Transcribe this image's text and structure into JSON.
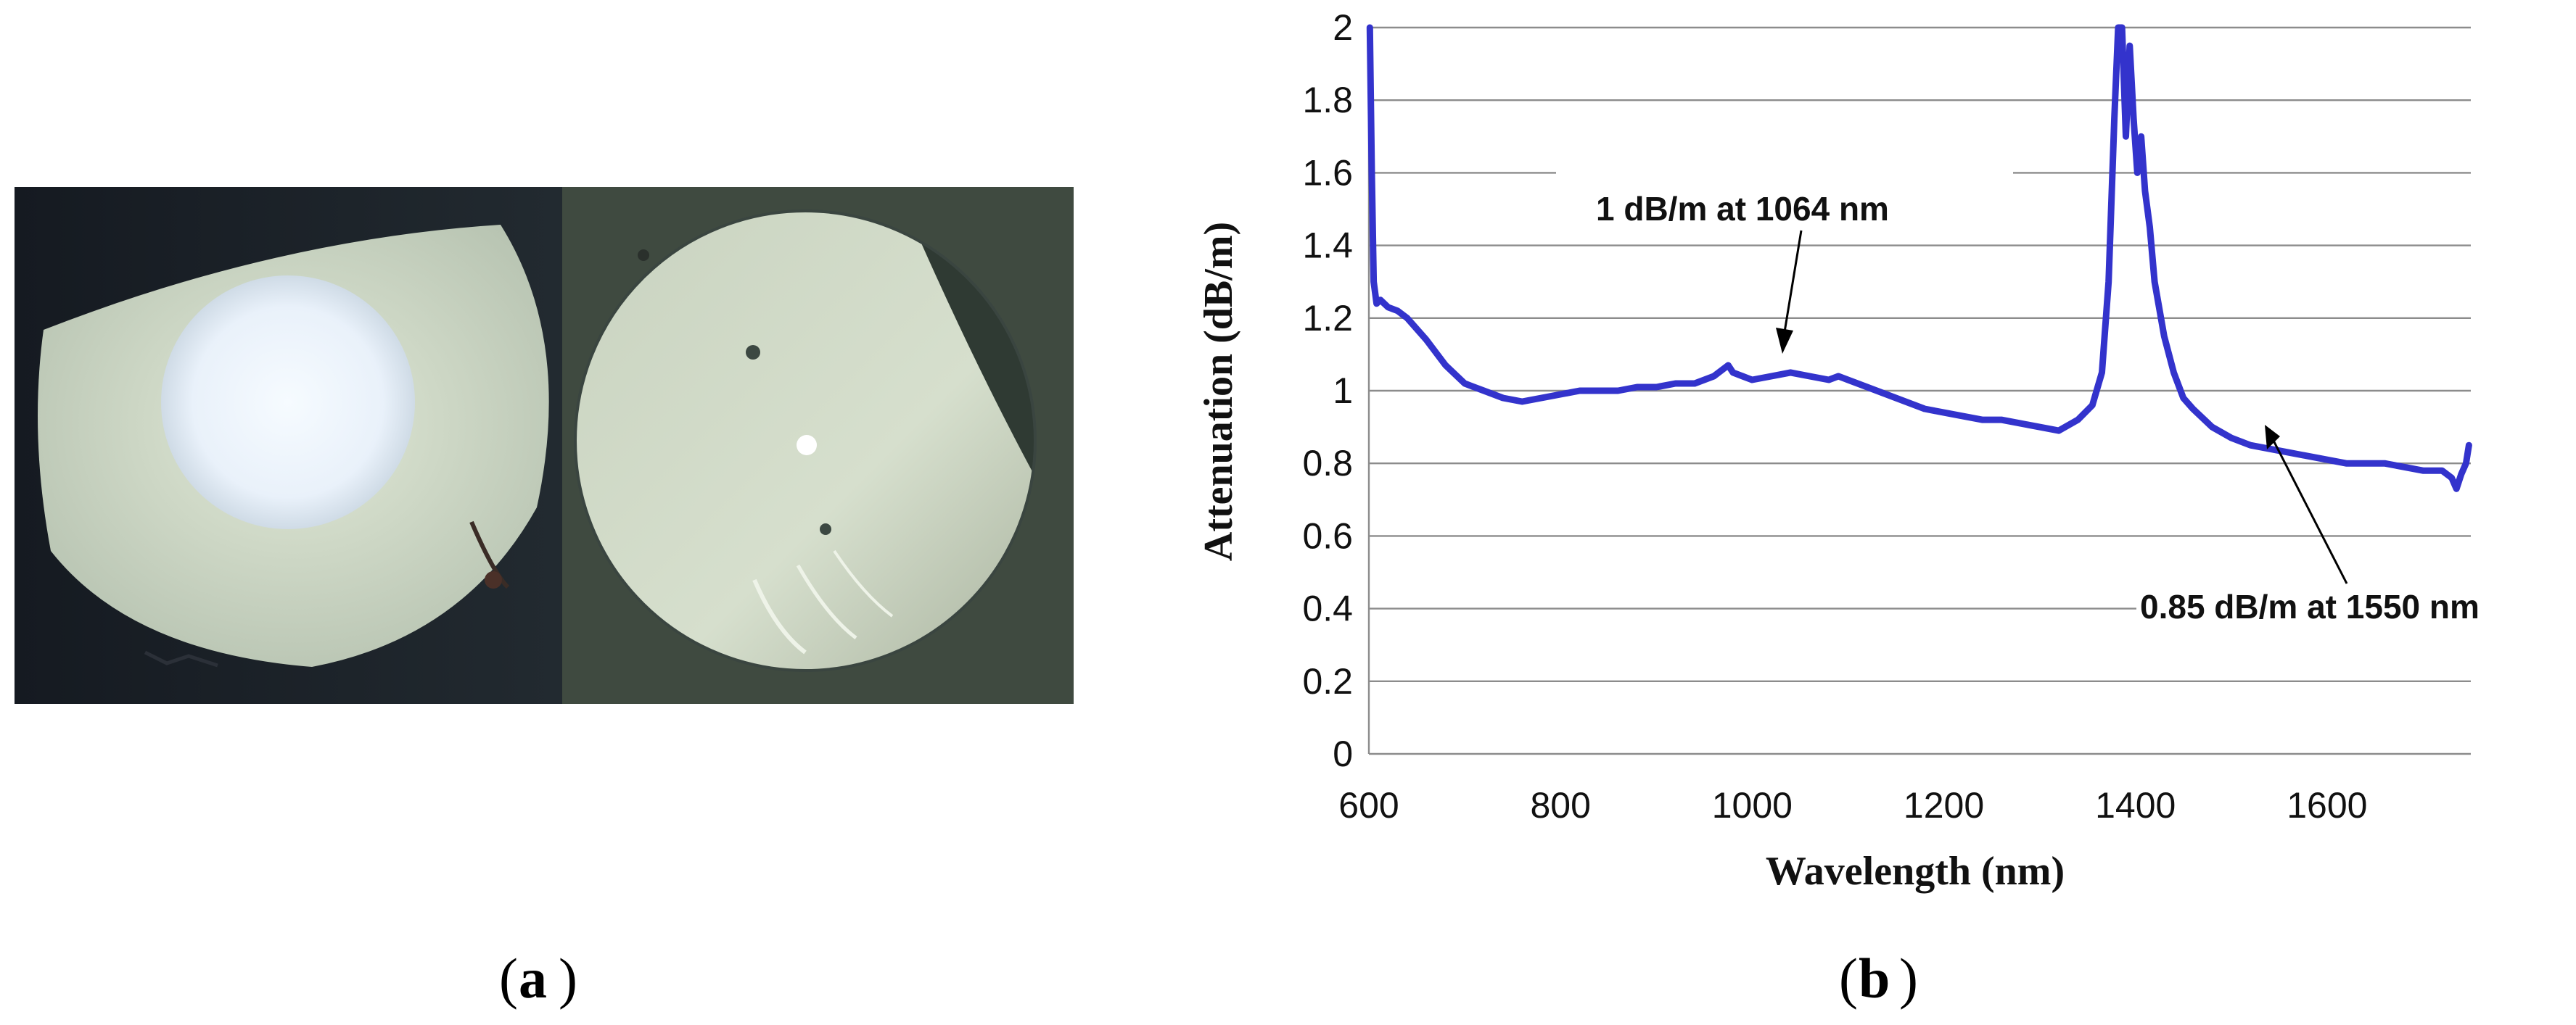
{
  "panel_labels": {
    "a": "a",
    "b": "b"
  },
  "colors": {
    "series": "#3333cc",
    "grid": "#8c8c8c",
    "photo_bg": "#1b2129"
  },
  "photo": {
    "left_image": "fiber-end-face-large-core",
    "right_image": "fiber-end-face-cleaved-small-core"
  },
  "chart_data": {
    "type": "line",
    "title": "",
    "xlabel": "Wavelength (nm)",
    "ylabel": "Attenuation (dB/m)",
    "xlim": [
      600,
      1750
    ],
    "ylim": [
      0,
      2
    ],
    "xticks": [
      600,
      800,
      1000,
      1200,
      1400,
      1600
    ],
    "xtick_labels": [
      "600",
      "800",
      "1000",
      "1200",
      "1400",
      "1600"
    ],
    "yticks": [
      0,
      0.2,
      0.4,
      0.6,
      0.8,
      1,
      1.2,
      1.4,
      1.6,
      1.8,
      2
    ],
    "ytick_labels": [
      "0",
      "0.2",
      "0.4",
      "0.6",
      "0.8",
      "1",
      "1.2",
      "1.4",
      "1.6",
      "1.8",
      "2"
    ],
    "grid": "horizontal",
    "series": [
      {
        "name": "Attenuation",
        "x": [
          601,
          603,
          605,
          608,
          612,
          620,
          630,
          640,
          660,
          680,
          700,
          720,
          740,
          760,
          780,
          800,
          820,
          840,
          860,
          880,
          900,
          920,
          940,
          960,
          975,
          980,
          990,
          1000,
          1020,
          1040,
          1060,
          1080,
          1090,
          1100,
          1120,
          1140,
          1160,
          1180,
          1200,
          1220,
          1240,
          1260,
          1280,
          1300,
          1320,
          1340,
          1355,
          1365,
          1372,
          1378,
          1382,
          1386,
          1390,
          1394,
          1398,
          1402,
          1406,
          1410,
          1415,
          1420,
          1430,
          1440,
          1450,
          1460,
          1480,
          1500,
          1520,
          1540,
          1560,
          1580,
          1600,
          1620,
          1640,
          1660,
          1680,
          1700,
          1720,
          1730,
          1735,
          1740,
          1745,
          1748
        ],
        "y": [
          2.0,
          1.6,
          1.3,
          1.24,
          1.25,
          1.23,
          1.22,
          1.2,
          1.14,
          1.07,
          1.02,
          1.0,
          0.98,
          0.97,
          0.98,
          0.99,
          1.0,
          1.0,
          1.0,
          1.01,
          1.01,
          1.02,
          1.02,
          1.04,
          1.07,
          1.05,
          1.04,
          1.03,
          1.04,
          1.05,
          1.04,
          1.03,
          1.04,
          1.03,
          1.01,
          0.99,
          0.97,
          0.95,
          0.94,
          0.93,
          0.92,
          0.92,
          0.91,
          0.9,
          0.89,
          0.92,
          0.96,
          1.05,
          1.3,
          1.75,
          2.0,
          2.0,
          1.7,
          1.95,
          1.75,
          1.6,
          1.7,
          1.55,
          1.45,
          1.3,
          1.15,
          1.05,
          0.98,
          0.95,
          0.9,
          0.87,
          0.85,
          0.84,
          0.83,
          0.82,
          0.81,
          0.8,
          0.8,
          0.8,
          0.79,
          0.78,
          0.78,
          0.76,
          0.73,
          0.77,
          0.8,
          0.85
        ]
      }
    ],
    "annotations": [
      {
        "text": "1 dB/m at 1064 nm",
        "x": 1064,
        "y": 1.05
      },
      {
        "text": "0.85 dB/m at 1550 nm",
        "x": 1550,
        "y": 0.85
      }
    ]
  }
}
